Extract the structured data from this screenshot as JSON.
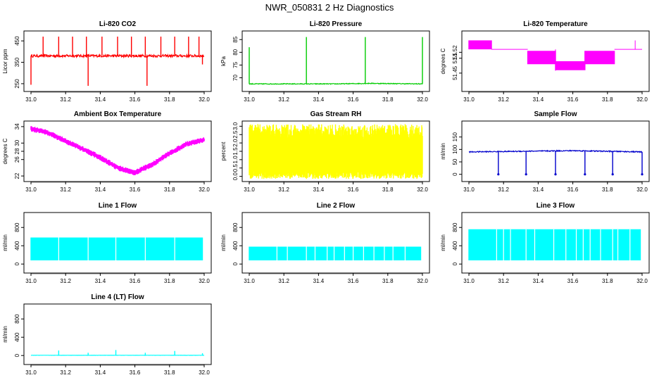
{
  "title": "NWR_050831  2 Hz Diagnostics",
  "chart_data": [
    {
      "id": "co2",
      "type": "line",
      "title": "Li-820 CO2",
      "ylabel": "Licor ppm",
      "color": "#ff0000",
      "xlim": [
        31.0,
        32.0
      ],
      "ylim": [
        230,
        480
      ],
      "xticks": [
        31.0,
        31.2,
        31.4,
        31.6,
        31.8,
        32.0
      ],
      "yticks": [
        250,
        350,
        450
      ],
      "baseline": [
        [
          31.0,
          380
        ],
        [
          32.0,
          380
        ]
      ],
      "noise": 6,
      "spikes": [
        {
          "x": 31.0,
          "y": 245
        },
        {
          "x": 31.07,
          "y": 470
        },
        {
          "x": 31.16,
          "y": 470
        },
        {
          "x": 31.24,
          "y": 470
        },
        {
          "x": 31.32,
          "y": 470
        },
        {
          "x": 31.33,
          "y": 240
        },
        {
          "x": 31.41,
          "y": 470
        },
        {
          "x": 31.5,
          "y": 470
        },
        {
          "x": 31.58,
          "y": 470
        },
        {
          "x": 31.66,
          "y": 470
        },
        {
          "x": 31.67,
          "y": 240
        },
        {
          "x": 31.75,
          "y": 470
        },
        {
          "x": 31.83,
          "y": 470
        },
        {
          "x": 31.91,
          "y": 470
        },
        {
          "x": 31.97,
          "y": 470
        },
        {
          "x": 31.99,
          "y": 340
        }
      ],
      "xtick_labels": [
        "31.0",
        "31.2",
        "31.4",
        "31.6",
        "31.8",
        "32.0"
      ],
      "ytick_labels": [
        "250",
        "350",
        "450"
      ]
    },
    {
      "id": "pressure",
      "type": "line",
      "title": "Li-820 Pressure",
      "ylabel": "kPa",
      "color": "#00cc00",
      "xlim": [
        31.0,
        32.0
      ],
      "ylim": [
        66,
        87
      ],
      "xticks": [
        31.0,
        31.2,
        31.4,
        31.6,
        31.8,
        32.0
      ],
      "yticks": [
        70,
        75,
        80,
        85
      ],
      "baseline": [
        [
          31.0,
          67.6
        ],
        [
          31.5,
          67.6
        ],
        [
          31.7,
          67.8
        ],
        [
          32.0,
          67.6
        ]
      ],
      "noise": 0.15,
      "spikes": [
        {
          "x": 31.0,
          "y": 82
        },
        {
          "x": 31.33,
          "y": 86
        },
        {
          "x": 31.67,
          "y": 86
        },
        {
          "x": 32.0,
          "y": 86
        }
      ],
      "xtick_labels": [
        "31.0",
        "31.2",
        "31.4",
        "31.6",
        "31.8",
        "32.0"
      ],
      "ytick_labels": [
        "70",
        "75",
        "80",
        "85"
      ]
    },
    {
      "id": "temperature",
      "type": "band",
      "title": "Li-820 Temperature",
      "ylabel": "degrees C",
      "color": "#ff00ff",
      "xlim": [
        31.0,
        32.0
      ],
      "ylim": [
        51.4,
        51.58
      ],
      "xticks": [
        31.0,
        31.2,
        31.4,
        31.6,
        31.8,
        32.0
      ],
      "yticks": [
        51.45,
        51.5,
        51.52
      ],
      "bands": [
        {
          "x0": 31.0,
          "x1": 31.13,
          "lo": 51.53,
          "hi": 51.56
        },
        {
          "x0": 31.13,
          "x1": 31.34,
          "lo": 51.53,
          "hi": 51.53
        },
        {
          "x0": 31.34,
          "x1": 31.5,
          "lo": 51.48,
          "hi": 51.525
        },
        {
          "x0": 31.5,
          "x1": 31.67,
          "lo": 51.46,
          "hi": 51.49
        },
        {
          "x0": 31.67,
          "x1": 31.84,
          "lo": 51.48,
          "hi": 51.525
        },
        {
          "x0": 31.84,
          "x1": 32.0,
          "lo": 51.53,
          "hi": 51.53
        }
      ],
      "spikes": [
        {
          "x": 31.96,
          "y": 51.56
        },
        {
          "x": 31.5,
          "y": 51.458
        }
      ],
      "xtick_labels": [
        "31.0",
        "31.2",
        "31.4",
        "31.6",
        "31.8",
        "32.0"
      ],
      "ytick_labels": [
        "51.45",
        "51.5",
        "51.52"
      ]
    },
    {
      "id": "ambient",
      "type": "band",
      "title": "Ambient Box Temperature",
      "ylabel": "degrees C",
      "color": "#ff00ff",
      "xlim": [
        31.0,
        32.0
      ],
      "ylim": [
        21.5,
        34.5
      ],
      "xticks": [
        31.0,
        31.2,
        31.4,
        31.6,
        31.8,
        32.0
      ],
      "yticks": [
        22,
        26,
        28,
        30,
        34
      ],
      "curve": [
        [
          31.0,
          33.5
        ],
        [
          31.1,
          32.5
        ],
        [
          31.2,
          30.5
        ],
        [
          31.3,
          28.5
        ],
        [
          31.4,
          26.5
        ],
        [
          31.5,
          24.0
        ],
        [
          31.6,
          22.8
        ],
        [
          31.7,
          24.8
        ],
        [
          31.8,
          27.5
        ],
        [
          31.9,
          29.8
        ],
        [
          32.0,
          30.8
        ]
      ],
      "spread": 1.0,
      "xtick_labels": [
        "31.0",
        "31.2",
        "31.4",
        "31.6",
        "31.8",
        "32.0"
      ],
      "ytick_labels": [
        "22",
        "26",
        "28",
        "30",
        "34"
      ]
    },
    {
      "id": "rh",
      "type": "band",
      "title": "Gas Stream RH",
      "ylabel": "percent",
      "color": "#ffff00",
      "xlim": [
        31.0,
        32.0
      ],
      "ylim": [
        -0.1,
        3.1
      ],
      "xticks": [
        31.0,
        31.2,
        31.4,
        31.6,
        31.8,
        32.0
      ],
      "yticks": [
        0.0,
        0.5,
        1.0,
        1.5,
        2.0,
        2.5,
        3.0
      ],
      "bands": [
        {
          "x0": 31.0,
          "x1": 32.0,
          "lo": 0.3,
          "hi": 2.5
        }
      ],
      "jitter": 0.45,
      "xtick_labels": [
        "31.0",
        "31.2",
        "31.4",
        "31.6",
        "31.8",
        "32.0"
      ],
      "ytick_labels": [
        "0.0",
        "0.5",
        "1.0",
        "1.5",
        "2.0",
        "2.5",
        "3.0"
      ]
    },
    {
      "id": "sample",
      "type": "line",
      "title": "Sample Flow",
      "ylabel": "ml/min",
      "color": "#0000cc",
      "xlim": [
        31.0,
        32.0
      ],
      "ylim": [
        -15,
        200
      ],
      "xticks": [
        31.0,
        31.2,
        31.4,
        31.6,
        31.8,
        32.0
      ],
      "yticks": [
        0,
        50,
        100,
        150
      ],
      "baseline": [
        [
          31.0,
          90
        ],
        [
          31.6,
          95
        ],
        [
          32.0,
          90
        ]
      ],
      "noise": 2,
      "spikes": [
        {
          "x": 31.17,
          "y": 0
        },
        {
          "x": 31.33,
          "y": 0
        },
        {
          "x": 31.5,
          "y": 0
        },
        {
          "x": 31.67,
          "y": 0
        },
        {
          "x": 31.83,
          "y": 0
        },
        {
          "x": 32.0,
          "y": 0
        }
      ],
      "xtick_labels": [
        "31.0",
        "31.2",
        "31.4",
        "31.6",
        "31.8",
        "32.0"
      ],
      "ytick_labels": [
        "0",
        "50",
        "100",
        "150"
      ]
    },
    {
      "id": "line1",
      "type": "band",
      "title": "Line 1 Flow",
      "ylabel": "ml/min",
      "color": "#00ffff",
      "xlim": [
        31.0,
        32.0
      ],
      "ylim": [
        -120,
        1050
      ],
      "xticks": [
        31.0,
        31.2,
        31.4,
        31.6,
        31.8,
        32.0
      ],
      "yticks": [
        0,
        400,
        800
      ],
      "bands": [
        {
          "x0": 31.0,
          "x1": 31.99,
          "lo": 80,
          "hi": 580
        }
      ],
      "gaps": [
        31.16,
        31.33,
        31.49,
        31.66,
        31.83
      ],
      "xtick_labels": [
        "31.0",
        "31.2",
        "31.4",
        "31.6",
        "31.8",
        "32.0"
      ],
      "ytick_labels": [
        "0",
        "400",
        "800"
      ]
    },
    {
      "id": "line2",
      "type": "band",
      "title": "Line 2 Flow",
      "ylabel": "ml/min",
      "color": "#00ffff",
      "xlim": [
        31.0,
        32.0
      ],
      "ylim": [
        -120,
        1050
      ],
      "xticks": [
        31.0,
        31.2,
        31.4,
        31.6,
        31.8,
        32.0
      ],
      "yticks": [
        0,
        400,
        800
      ],
      "bands": [
        {
          "x0": 31.0,
          "x1": 31.99,
          "lo": 80,
          "hi": 380
        }
      ],
      "gaps": [
        31.16,
        31.22,
        31.33,
        31.38,
        31.45,
        31.49,
        31.55,
        31.6,
        31.66,
        31.72,
        31.78,
        31.83,
        31.9
      ],
      "xtick_labels": [
        "31.0",
        "31.2",
        "31.4",
        "31.6",
        "31.8",
        "32.0"
      ],
      "ytick_labels": [
        "0",
        "400",
        "800"
      ]
    },
    {
      "id": "line3",
      "type": "band",
      "title": "Line 3 Flow",
      "ylabel": "ml/min",
      "color": "#00ffff",
      "xlim": [
        31.0,
        32.0
      ],
      "ylim": [
        -120,
        1050
      ],
      "xticks": [
        31.0,
        31.2,
        31.4,
        31.6,
        31.8,
        32.0
      ],
      "yticks": [
        0,
        400,
        800
      ],
      "bands": [
        {
          "x0": 31.0,
          "x1": 31.99,
          "lo": 80,
          "hi": 760
        }
      ],
      "gaps": [
        31.16,
        31.2,
        31.24,
        31.33,
        31.38,
        31.49,
        31.56,
        31.62,
        31.66,
        31.7,
        31.76,
        31.83,
        31.86,
        31.93
      ],
      "xtick_labels": [
        "31.0",
        "31.2",
        "31.4",
        "31.6",
        "31.8",
        "32.0"
      ],
      "ytick_labels": [
        "0",
        "400",
        "800"
      ]
    },
    {
      "id": "line4",
      "type": "line",
      "title": "Line 4 (LT) Flow",
      "ylabel": "ml/min",
      "color": "#00ffff",
      "xlim": [
        31.0,
        32.0
      ],
      "ylim": [
        -120,
        1050
      ],
      "xticks": [
        31.0,
        31.2,
        31.4,
        31.6,
        31.8,
        32.0
      ],
      "yticks": [
        0,
        400,
        800
      ],
      "baseline": [
        [
          31.0,
          5
        ],
        [
          32.0,
          5
        ]
      ],
      "noise": 2,
      "spikes": [
        {
          "x": 31.16,
          "y": 110
        },
        {
          "x": 31.33,
          "y": 60
        },
        {
          "x": 31.49,
          "y": 120
        },
        {
          "x": 31.66,
          "y": 60
        },
        {
          "x": 31.83,
          "y": 100
        },
        {
          "x": 31.99,
          "y": 50
        }
      ],
      "xtick_labels": [
        "31.0",
        "31.2",
        "31.4",
        "31.6",
        "31.8",
        "32.0"
      ],
      "ytick_labels": [
        "0",
        "400",
        "800"
      ]
    }
  ]
}
